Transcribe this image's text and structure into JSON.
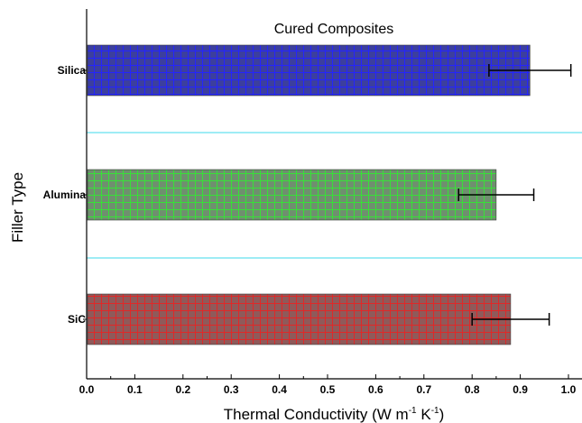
{
  "chart_data": {
    "type": "bar",
    "orientation": "horizontal",
    "title": "Cured Composites",
    "xlabel": "Thermal Conductivity (W m",
    "xlabel_sup1": "-1",
    "xlabel_mid": " K",
    "xlabel_sup2": "-1",
    "xlabel_end": ")",
    "ylabel": "Filler Type",
    "xlim": [
      0.0,
      1.0
    ],
    "xticks": [
      "0.0",
      "0.1",
      "0.2",
      "0.3",
      "0.4",
      "0.5",
      "0.6",
      "0.7",
      "0.8",
      "0.9",
      "1.0"
    ],
    "categories": [
      "Silica",
      "Alumina",
      "SiC"
    ],
    "values": [
      0.92,
      0.85,
      0.88
    ],
    "errors": [
      0.085,
      0.078,
      0.08
    ],
    "colors": {
      "Silica": {
        "fill": "#3c3f9e",
        "grid": "#2424ff"
      },
      "Alumina": {
        "fill": "#6f8f6f",
        "grid": "#38e038"
      },
      "SiC": {
        "fill": "#8f5a5a",
        "grid": "#e02828"
      }
    },
    "separator_color": "#7fe6f2",
    "grid": false
  }
}
